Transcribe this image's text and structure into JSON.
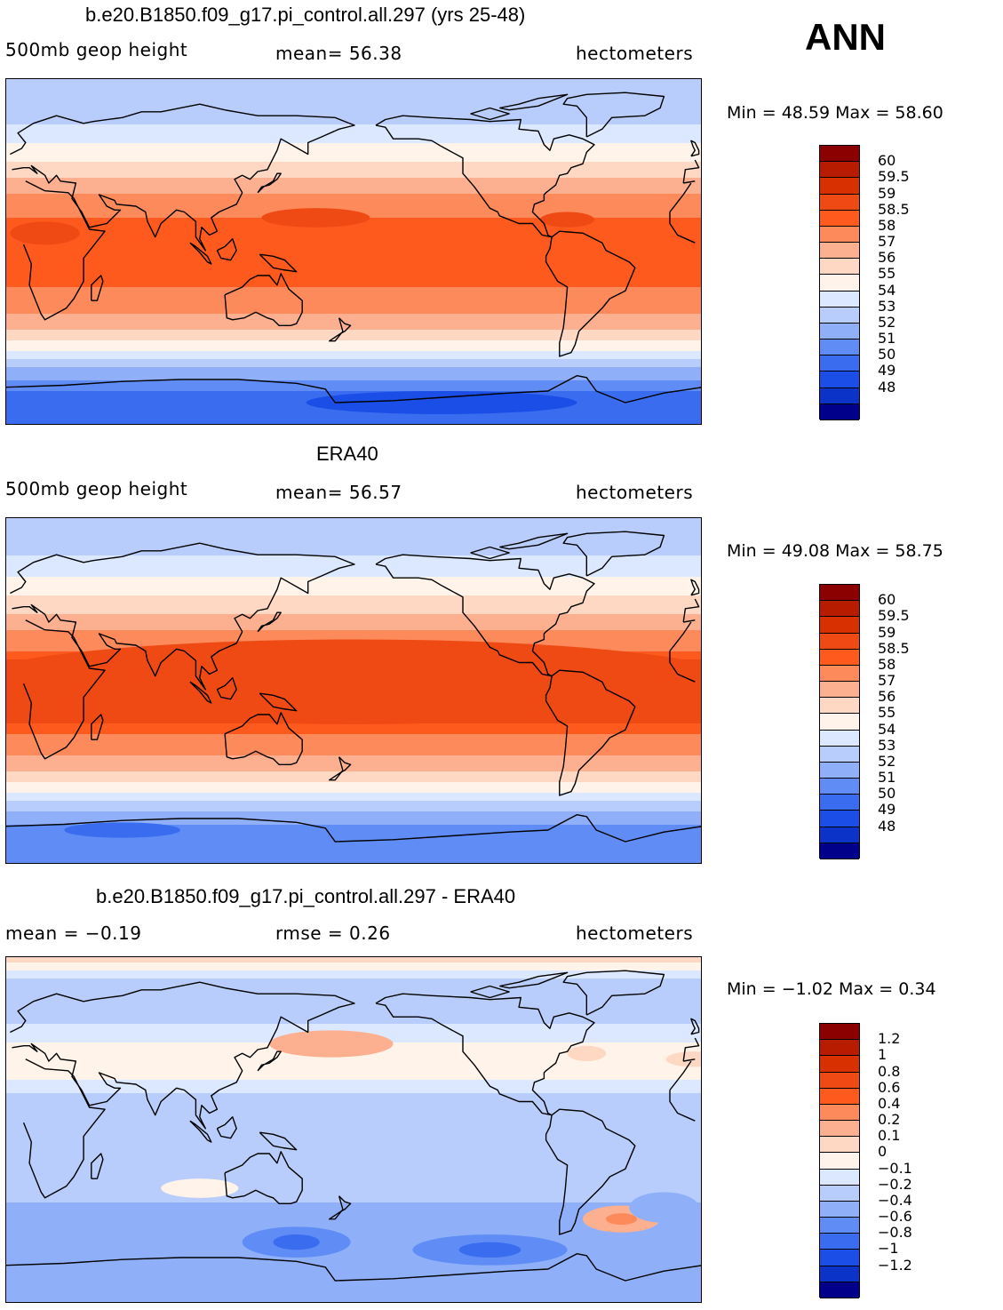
{
  "season": "ANN",
  "panels": [
    {
      "title": "b.e20.B1850.f09_g17.pi_control.all.297 (yrs 25-48)",
      "left_text": "500mb geop height",
      "mid_text": "mean=   56.38",
      "right_text": "hectometers",
      "minmax": "Min =   48.59  Max =   58.60"
    },
    {
      "title": "ERA40",
      "left_text": "500mb geop height",
      "mid_text": "mean=   56.57",
      "right_text": "hectometers",
      "minmax": "Min =   49.08  Max =   58.75"
    },
    {
      "title": "b.e20.B1850.f09_g17.pi_control.all.297 - ERA40",
      "left_text": "mean =   −0.19",
      "mid_text": "rmse =     0.26",
      "right_text": "hectometers",
      "minmax": "Min =   −1.02  Max =     0.34"
    }
  ],
  "colorbar_field": {
    "labels": [
      "60",
      "59.5",
      "59",
      "58.5",
      "58",
      "57",
      "56",
      "55",
      "54",
      "53",
      "52",
      "51",
      "50",
      "49",
      "48"
    ],
    "colors": [
      "#8b0000",
      "#b71c00",
      "#d93000",
      "#f04a14",
      "#ff5a1e",
      "#fd8a5a",
      "#fcb090",
      "#fed8c2",
      "#fff3ea",
      "#dbe8ff",
      "#b8cdfb",
      "#8fb0f8",
      "#5f8df5",
      "#3a6cf0",
      "#1a4ee6",
      "#0c33c8",
      "#00008b"
    ]
  },
  "colorbar_diff": {
    "labels": [
      "1.2",
      "1",
      "0.8",
      "0.6",
      "0.4",
      "0.2",
      "0.1",
      "0",
      "−0.1",
      "−0.2",
      "−0.4",
      "−0.6",
      "−0.8",
      "−1",
      "−1.2"
    ],
    "colors": [
      "#8b0000",
      "#b71c00",
      "#d93000",
      "#f04a14",
      "#ff5a1e",
      "#fd8a5a",
      "#fcb090",
      "#fed8c2",
      "#fff3ea",
      "#dbe8ff",
      "#b8cdfb",
      "#8fb0f8",
      "#5f8df5",
      "#3a6cf0",
      "#1a4ee6",
      "#0c33c8",
      "#00008b"
    ]
  },
  "chart_data": [
    {
      "type": "heatmap",
      "title": "b.e20.B1850.f09_g17.pi_control.all.297 (yrs 25-48)",
      "variable": "500mb geop height",
      "units": "hectometers",
      "mean": 56.38,
      "min": 48.59,
      "max": 58.6,
      "contour_levels": [
        48,
        49,
        50,
        51,
        52,
        53,
        54,
        55,
        56,
        57,
        58,
        58.5,
        59,
        59.5,
        60
      ],
      "zonal_profile": {
        "lat": [
          90,
          75,
          60,
          45,
          30,
          15,
          0,
          -15,
          -30,
          -45,
          -60,
          -75,
          -90
        ],
        "value": [
          52.0,
          52.3,
          53.6,
          55.3,
          57.0,
          58.3,
          58.4,
          58.2,
          57.2,
          55.3,
          52.0,
          49.6,
          49.2
        ]
      }
    },
    {
      "type": "heatmap",
      "title": "ERA40",
      "variable": "500mb geop height",
      "units": "hectometers",
      "mean": 56.57,
      "min": 49.08,
      "max": 58.75,
      "contour_levels": [
        48,
        49,
        50,
        51,
        52,
        53,
        54,
        55,
        56,
        57,
        58,
        58.5,
        59,
        59.5,
        60
      ],
      "zonal_profile": {
        "lat": [
          90,
          75,
          60,
          45,
          30,
          15,
          0,
          -15,
          -30,
          -45,
          -60,
          -75,
          -90
        ],
        "value": [
          52.2,
          52.6,
          53.9,
          55.5,
          57.2,
          58.6,
          58.7,
          58.6,
          57.4,
          55.5,
          52.3,
          50.2,
          50.0
        ]
      }
    },
    {
      "type": "heatmap",
      "title": "b.e20.B1850.f09_g17.pi_control.all.297 - ERA40",
      "units": "hectometers",
      "mean": -0.19,
      "rmse": 0.26,
      "min": -1.02,
      "max": 0.34,
      "contour_levels": [
        -1.2,
        -1,
        -0.8,
        -0.6,
        -0.4,
        -0.2,
        -0.1,
        0,
        0.1,
        0.2,
        0.4,
        0.6,
        0.8,
        1,
        1.2
      ],
      "zonal_profile": {
        "lat": [
          90,
          75,
          60,
          45,
          30,
          15,
          0,
          -15,
          -30,
          -45,
          -60,
          -75,
          -90
        ],
        "value": [
          0.05,
          -0.3,
          -0.25,
          -0.1,
          -0.05,
          -0.25,
          -0.3,
          -0.3,
          -0.3,
          -0.5,
          -0.6,
          -0.5,
          -0.4
        ]
      }
    }
  ]
}
